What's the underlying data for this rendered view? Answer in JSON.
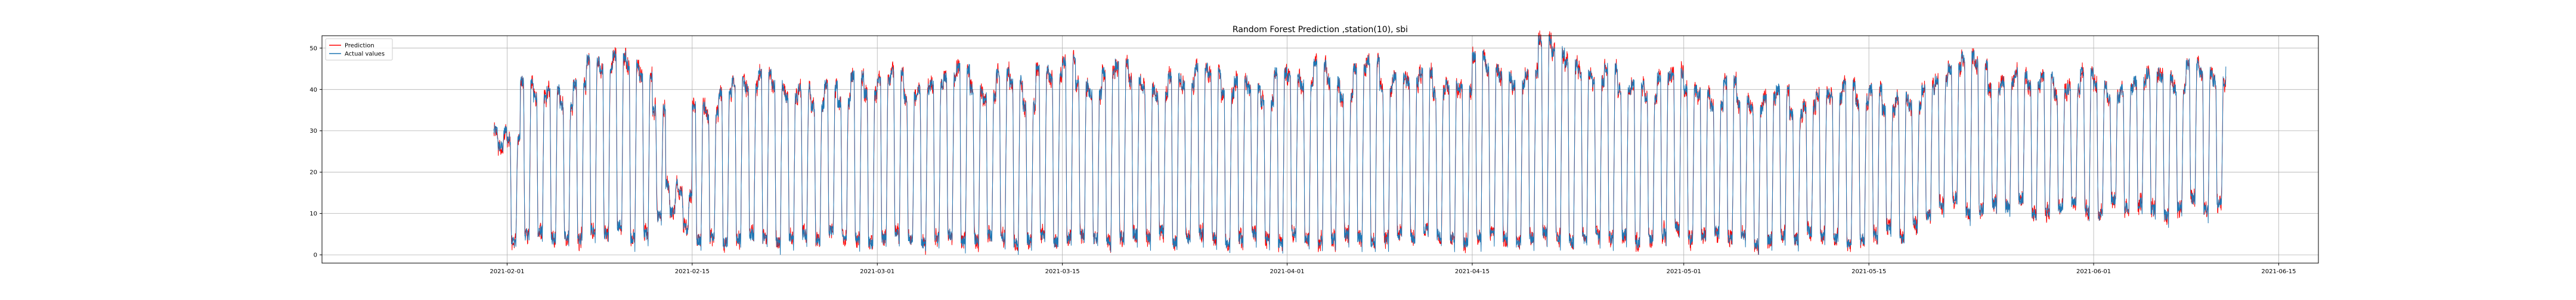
{
  "chart_data": {
    "type": "line",
    "title": "Random Forest Prediction ,station(10), sbi",
    "xlabel": "",
    "ylabel": "",
    "x_range": [
      "2021-01-18",
      "2021-06-18"
    ],
    "ylim": [
      -2,
      53
    ],
    "grid": true,
    "legend_placement": "top-left",
    "x_ticks": [
      "2021-02-01",
      "2021-02-15",
      "2021-03-01",
      "2021-03-15",
      "2021-04-01",
      "2021-04-15",
      "2021-05-01",
      "2021-05-15",
      "2021-06-01",
      "2021-06-15"
    ],
    "y_ticks": [
      0,
      10,
      20,
      30,
      40,
      50
    ],
    "data_start": "2021-01-31",
    "data_end": "2021-06-10",
    "daily_peaks": [
      30,
      28,
      42,
      38,
      40,
      36,
      41,
      47,
      45,
      48,
      46,
      43,
      35,
      17,
      15,
      36,
      34,
      39,
      42,
      40,
      44,
      41,
      38,
      40,
      36,
      41,
      37,
      43,
      39,
      42,
      44,
      38,
      40,
      41,
      43,
      45,
      40,
      38,
      44,
      42,
      36,
      45,
      43,
      47,
      41,
      39,
      44,
      46,
      42,
      40,
      38,
      43,
      41,
      45,
      44,
      39,
      42,
      40,
      37,
      44,
      43,
      41,
      46,
      42,
      38,
      45,
      47,
      40,
      43,
      42,
      44,
      39,
      41,
      40,
      48,
      45,
      43,
      41,
      44,
      52,
      49,
      46,
      44,
      42,
      45,
      40,
      41,
      38,
      43,
      44,
      40,
      39,
      36,
      42,
      37,
      35,
      38,
      40,
      34,
      36,
      39,
      38,
      41,
      37,
      40,
      35,
      38,
      36,
      40,
      42,
      45,
      48,
      46,
      40,
      42,
      44,
      41,
      43,
      39,
      40,
      44,
      41,
      38,
      40,
      42,
      44,
      43,
      40,
      46,
      44,
      42,
      45,
      41,
      43,
      40,
      44
    ],
    "daily_troughs": [
      26,
      2,
      3,
      4,
      2,
      3,
      2,
      4,
      3,
      5,
      2,
      3,
      8,
      10,
      6,
      2,
      3,
      1,
      2,
      3,
      2,
      1,
      2,
      3,
      2,
      4,
      3,
      2,
      1,
      2,
      3,
      2,
      1,
      2,
      3,
      1,
      2,
      3,
      2,
      1,
      2,
      3,
      1,
      2,
      3,
      2,
      1,
      2,
      3,
      2,
      4,
      1,
      2,
      3,
      2,
      1,
      2,
      3,
      2,
      1,
      3,
      2,
      1,
      2,
      3,
      2,
      1,
      2,
      3,
      2,
      4,
      3,
      2,
      1,
      2,
      3,
      2,
      1,
      2,
      3,
      2,
      1,
      2,
      3,
      2,
      3,
      1,
      2,
      3,
      5,
      2,
      3,
      4,
      2,
      3,
      1,
      2,
      3,
      2,
      4,
      3,
      2,
      1,
      2,
      3,
      5,
      2,
      6,
      8,
      10,
      12,
      8,
      9,
      11,
      10,
      12,
      8,
      9,
      10,
      11,
      9,
      8,
      12,
      10,
      11,
      9,
      8,
      10,
      12,
      9,
      11,
      10,
      12,
      14,
      12,
      15
    ],
    "series": [
      {
        "name": "Prediction",
        "color": "#ff0000"
      },
      {
        "name": "Actual values",
        "color": "#1f77b4"
      }
    ]
  }
}
